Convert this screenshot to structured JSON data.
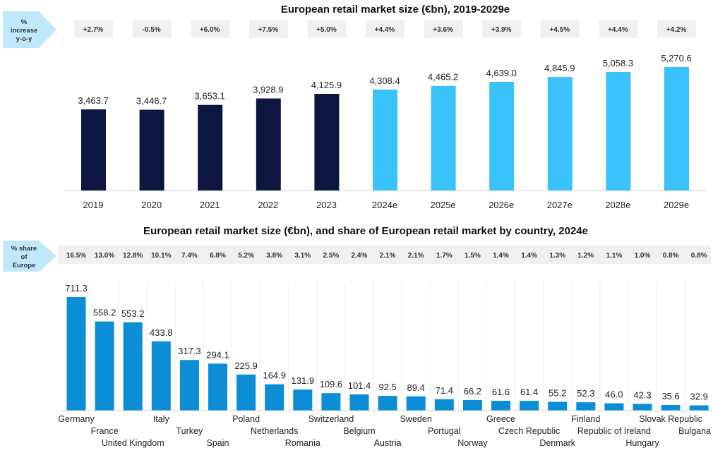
{
  "colors": {
    "actual": "#0d1640",
    "forecast": "#3ac2fa",
    "country": "#0b8ed6",
    "label_box": "#f0f0f0",
    "arrow": "#bfe8fb"
  },
  "chart_data": [
    {
      "type": "bar",
      "title": "European retail market size (€bn), 2019-2029e",
      "side_label": "% increase y-o-y",
      "categories": [
        "2019",
        "2020",
        "2021",
        "2022",
        "2023",
        "2024e",
        "2025e",
        "2026e",
        "2027e",
        "2028e",
        "2029e"
      ],
      "values": [
        3463.7,
        3446.7,
        3653.1,
        3928.9,
        4125.9,
        4308.4,
        4465.2,
        4639.0,
        4845.9,
        5058.3,
        5270.6
      ],
      "value_labels": [
        "3,463.7",
        "3,446.7",
        "3,653.1",
        "3,928.9",
        "4,125.9",
        "4,308.4",
        "4,465.2",
        "4,639.0",
        "4,845.9",
        "5,058.3",
        "5,270.6"
      ],
      "yoy_change": [
        "+2.7%",
        "-0.5%",
        "+6.0%",
        "+7.5%",
        "+5.0%",
        "+4.4%",
        "+3.6%",
        "+3.9%",
        "+4.5%",
        "+4.4%",
        "+4.2%"
      ],
      "forecast_from": "2024e",
      "ylim": [
        0,
        5270.6
      ],
      "grid": false
    },
    {
      "type": "bar",
      "title": "European retail market size (€bn), and share of European retail market by country, 2024e",
      "side_label": "% share of Europe",
      "categories": [
        "Germany",
        "France",
        "United Kingdom",
        "Italy",
        "Turkey",
        "Spain",
        "Poland",
        "Netherlands",
        "Romania",
        "Switzerland",
        "Belgium",
        "Austria",
        "Sweden",
        "Portugal",
        "Norway",
        "Greece",
        "Czech Republic",
        "Denmark",
        "Finland",
        "Republic of Ireland",
        "Hungary",
        "Slovak Republic",
        "Bulgaria"
      ],
      "values": [
        711.3,
        558.2,
        553.2,
        433.8,
        317.3,
        294.1,
        225.9,
        164.9,
        131.9,
        109.6,
        101.4,
        92.5,
        89.4,
        71.4,
        66.2,
        61.6,
        61.4,
        55.2,
        52.3,
        46.0,
        42.3,
        35.6,
        32.9
      ],
      "value_labels": [
        "711.3",
        "558.2",
        "553.2",
        "433.8",
        "317.3",
        "294.1",
        "225.9",
        "164.9",
        "131.9",
        "109.6",
        "101.4",
        "92.5",
        "89.4",
        "71.4",
        "66.2",
        "61.6",
        "61.4",
        "55.2",
        "52.3",
        "46.0",
        "42.3",
        "35.6",
        "32.9"
      ],
      "share": [
        "16.5%",
        "13.0%",
        "12.8%",
        "10.1%",
        "7.4%",
        "6.8%",
        "5.2%",
        "3.8%",
        "3.1%",
        "2.5%",
        "2.4%",
        "2.1%",
        "2.1%",
        "1.7%",
        "1.5%",
        "1.4%",
        "1.4%",
        "1.3%",
        "1.2%",
        "1.1%",
        "1.0%",
        "0.8%",
        "0.8%"
      ],
      "ylim": [
        0,
        711.3
      ],
      "grid": false
    }
  ]
}
